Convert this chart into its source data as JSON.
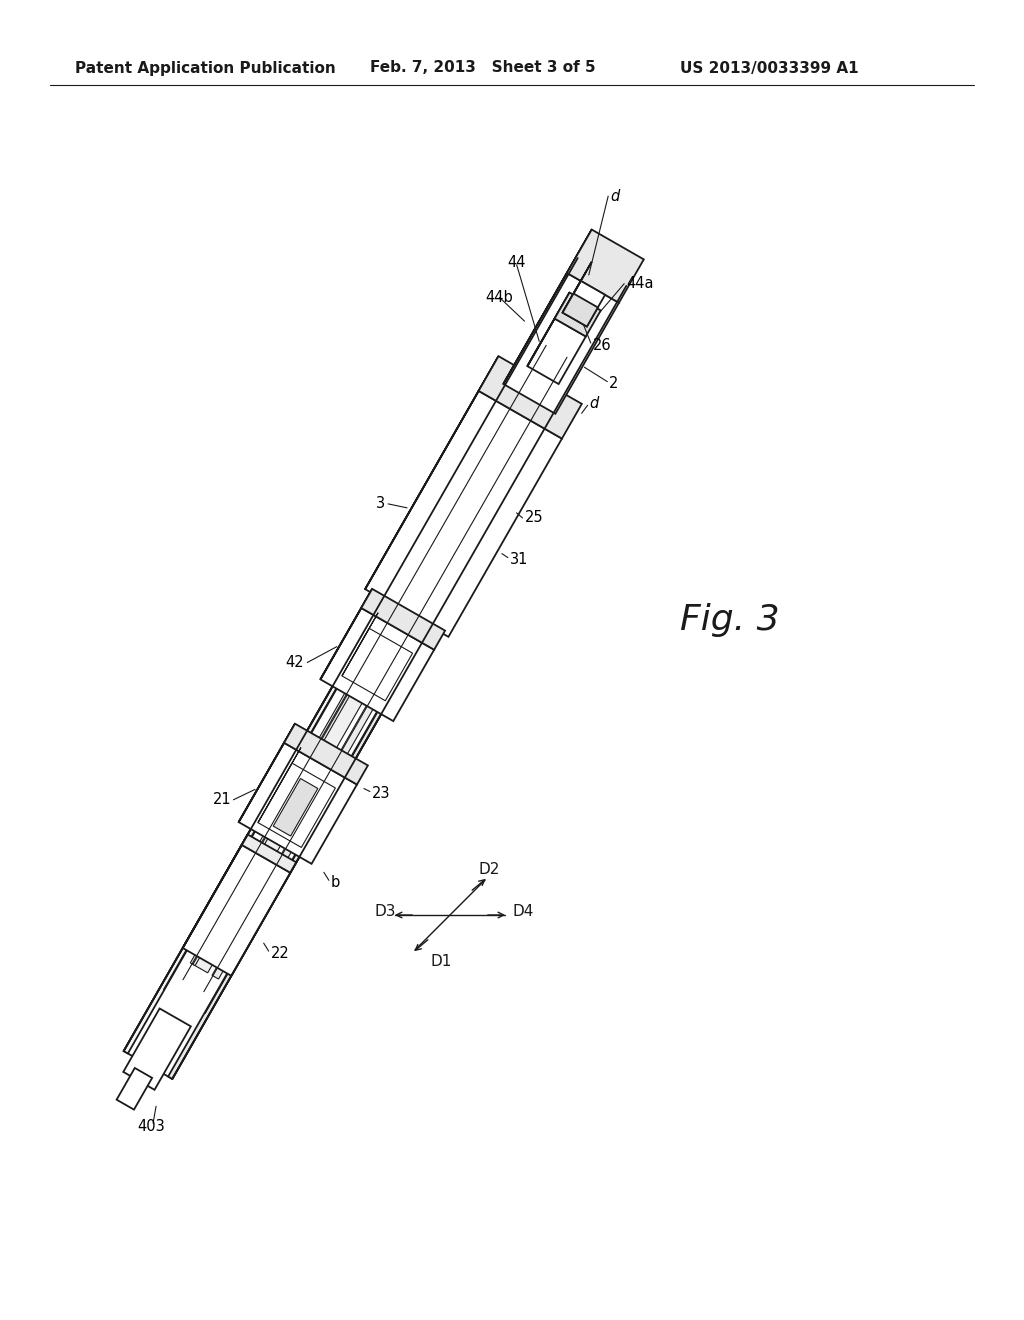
{
  "background_color": "#ffffff",
  "header_left": "Patent Application Publication",
  "header_center": "Feb. 7, 2013   Sheet 3 of 5",
  "header_right": "US 2013/0033399 A1",
  "fig_label": "Fig. 3",
  "line_color": "#1a1a1a",
  "line_width": 1.3,
  "thin_lw": 0.8,
  "label_fontsize": 10.5,
  "fig_label_fontsize": 26
}
